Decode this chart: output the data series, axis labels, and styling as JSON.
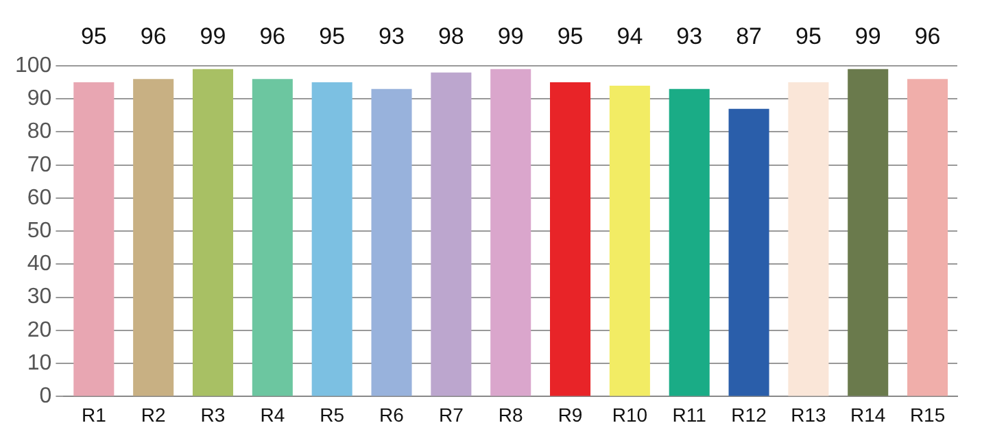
{
  "chart_data": {
    "type": "bar",
    "categories": [
      "R1",
      "R2",
      "R3",
      "R4",
      "R5",
      "R6",
      "R7",
      "R8",
      "R9",
      "R10",
      "R11",
      "R12",
      "R13",
      "R14",
      "R15"
    ],
    "values": [
      95,
      96,
      99,
      96,
      95,
      93,
      98,
      99,
      95,
      94,
      93,
      87,
      95,
      99,
      96
    ],
    "colors": [
      "#e8a6b2",
      "#c8b083",
      "#a8c064",
      "#6cc6a0",
      "#7cc0e2",
      "#98b2dc",
      "#bca6ce",
      "#daa6cc",
      "#e82428",
      "#f2ec64",
      "#1aac86",
      "#2a5eaa",
      "#fae6d8",
      "#6a7a4c",
      "#f0aeaa"
    ],
    "ylim": [
      0,
      100
    ],
    "yticks": [
      0,
      10,
      20,
      30,
      40,
      50,
      60,
      70,
      80,
      90,
      100
    ],
    "grid": "y",
    "data_labels": true
  }
}
